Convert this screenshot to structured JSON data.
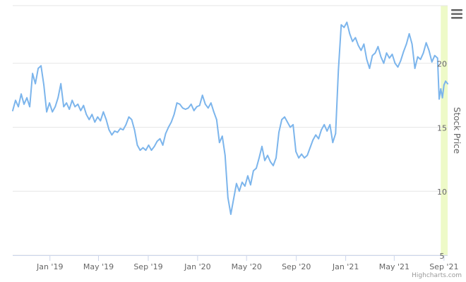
{
  "chart_data": {
    "type": "line",
    "title": "",
    "xlabel": "",
    "ylabel": "Stock Price",
    "yaxis_position": "right",
    "ylim": [
      5,
      24.5
    ],
    "xlim": [
      "2018-10-01",
      "2021-09-10"
    ],
    "y_ticks": [
      {
        "value": 5,
        "label": "5"
      },
      {
        "value": 10,
        "label": "10"
      },
      {
        "value": 15,
        "label": "15"
      },
      {
        "value": 20,
        "label": "20"
      }
    ],
    "x_ticks": [
      {
        "date": "2019-01-01",
        "label": "Jan '19"
      },
      {
        "date": "2019-05-01",
        "label": "May '19"
      },
      {
        "date": "2019-09-01",
        "label": "Sep '19"
      },
      {
        "date": "2020-01-01",
        "label": "Jan '20"
      },
      {
        "date": "2020-05-01",
        "label": "May '20"
      },
      {
        "date": "2020-09-01",
        "label": "Sep '20"
      },
      {
        "date": "2021-01-01",
        "label": "Jan '21"
      },
      {
        "date": "2021-05-01",
        "label": "May '21"
      },
      {
        "date": "2021-09-01",
        "label": "Sep '21"
      }
    ],
    "grid": true,
    "legend": "none",
    "highlight_band": {
      "from": "2021-08-24",
      "to": "2021-09-10",
      "color": "#eefac8"
    },
    "series": [
      {
        "color": "#7cb5ec",
        "points": [
          [
            "2018-10-01",
            16.3
          ],
          [
            "2018-10-08",
            17.1
          ],
          [
            "2018-10-15",
            16.6
          ],
          [
            "2018-10-22",
            17.6
          ],
          [
            "2018-10-29",
            16.8
          ],
          [
            "2018-11-05",
            17.3
          ],
          [
            "2018-11-12",
            16.6
          ],
          [
            "2018-11-19",
            19.2
          ],
          [
            "2018-11-26",
            18.4
          ],
          [
            "2018-12-03",
            19.6
          ],
          [
            "2018-12-10",
            19.8
          ],
          [
            "2018-12-17",
            18.3
          ],
          [
            "2018-12-24",
            16.2
          ],
          [
            "2018-12-31",
            16.9
          ],
          [
            "2019-01-07",
            16.2
          ],
          [
            "2019-01-14",
            16.6
          ],
          [
            "2019-01-21",
            17.3
          ],
          [
            "2019-01-28",
            18.4
          ],
          [
            "2019-02-04",
            16.6
          ],
          [
            "2019-02-11",
            16.9
          ],
          [
            "2019-02-18",
            16.4
          ],
          [
            "2019-02-25",
            17.1
          ],
          [
            "2019-03-04",
            16.6
          ],
          [
            "2019-03-11",
            16.8
          ],
          [
            "2019-03-18",
            16.3
          ],
          [
            "2019-03-25",
            16.7
          ],
          [
            "2019-04-01",
            16.0
          ],
          [
            "2019-04-08",
            15.6
          ],
          [
            "2019-04-15",
            16.0
          ],
          [
            "2019-04-22",
            15.4
          ],
          [
            "2019-04-29",
            15.8
          ],
          [
            "2019-05-06",
            15.5
          ],
          [
            "2019-05-13",
            16.2
          ],
          [
            "2019-05-20",
            15.6
          ],
          [
            "2019-05-27",
            14.8
          ],
          [
            "2019-06-03",
            14.4
          ],
          [
            "2019-06-10",
            14.7
          ],
          [
            "2019-06-17",
            14.6
          ],
          [
            "2019-06-24",
            14.9
          ],
          [
            "2019-07-01",
            14.8
          ],
          [
            "2019-07-08",
            15.2
          ],
          [
            "2019-07-15",
            15.8
          ],
          [
            "2019-07-22",
            15.6
          ],
          [
            "2019-07-29",
            14.8
          ],
          [
            "2019-08-05",
            13.6
          ],
          [
            "2019-08-12",
            13.2
          ],
          [
            "2019-08-19",
            13.4
          ],
          [
            "2019-08-26",
            13.2
          ],
          [
            "2019-09-02",
            13.6
          ],
          [
            "2019-09-09",
            13.2
          ],
          [
            "2019-09-16",
            13.5
          ],
          [
            "2019-09-23",
            13.9
          ],
          [
            "2019-09-30",
            14.1
          ],
          [
            "2019-10-07",
            13.6
          ],
          [
            "2019-10-14",
            14.5
          ],
          [
            "2019-10-21",
            15.0
          ],
          [
            "2019-10-28",
            15.4
          ],
          [
            "2019-11-04",
            16.0
          ],
          [
            "2019-11-11",
            16.9
          ],
          [
            "2019-11-18",
            16.8
          ],
          [
            "2019-11-25",
            16.5
          ],
          [
            "2019-12-02",
            16.4
          ],
          [
            "2019-12-09",
            16.5
          ],
          [
            "2019-12-16",
            16.8
          ],
          [
            "2019-12-23",
            16.3
          ],
          [
            "2019-12-30",
            16.6
          ],
          [
            "2020-01-06",
            16.7
          ],
          [
            "2020-01-13",
            17.5
          ],
          [
            "2020-01-20",
            16.8
          ],
          [
            "2020-01-27",
            16.5
          ],
          [
            "2020-02-03",
            16.9
          ],
          [
            "2020-02-10",
            16.2
          ],
          [
            "2020-02-17",
            15.6
          ],
          [
            "2020-02-24",
            13.8
          ],
          [
            "2020-03-02",
            14.3
          ],
          [
            "2020-03-09",
            12.8
          ],
          [
            "2020-03-16",
            9.5
          ],
          [
            "2020-03-23",
            8.2
          ],
          [
            "2020-03-30",
            9.4
          ],
          [
            "2020-04-06",
            10.6
          ],
          [
            "2020-04-13",
            10.0
          ],
          [
            "2020-04-20",
            10.7
          ],
          [
            "2020-04-27",
            10.4
          ],
          [
            "2020-05-04",
            11.2
          ],
          [
            "2020-05-11",
            10.5
          ],
          [
            "2020-05-18",
            11.6
          ],
          [
            "2020-05-25",
            11.8
          ],
          [
            "2020-06-01",
            12.6
          ],
          [
            "2020-06-08",
            13.5
          ],
          [
            "2020-06-15",
            12.4
          ],
          [
            "2020-06-22",
            12.8
          ],
          [
            "2020-06-29",
            12.3
          ],
          [
            "2020-07-06",
            12.0
          ],
          [
            "2020-07-13",
            12.6
          ],
          [
            "2020-07-20",
            14.6
          ],
          [
            "2020-07-27",
            15.6
          ],
          [
            "2020-08-03",
            15.8
          ],
          [
            "2020-08-10",
            15.4
          ],
          [
            "2020-08-17",
            15.0
          ],
          [
            "2020-08-24",
            15.2
          ],
          [
            "2020-08-31",
            13.1
          ],
          [
            "2020-09-07",
            12.6
          ],
          [
            "2020-09-14",
            12.9
          ],
          [
            "2020-09-21",
            12.6
          ],
          [
            "2020-09-28",
            12.8
          ],
          [
            "2020-10-05",
            13.4
          ],
          [
            "2020-10-12",
            14.0
          ],
          [
            "2020-10-19",
            14.4
          ],
          [
            "2020-10-26",
            14.1
          ],
          [
            "2020-11-02",
            14.8
          ],
          [
            "2020-11-09",
            15.2
          ],
          [
            "2020-11-16",
            14.7
          ],
          [
            "2020-11-23",
            15.2
          ],
          [
            "2020-11-30",
            13.8
          ],
          [
            "2020-12-07",
            14.5
          ],
          [
            "2020-12-14",
            19.5
          ],
          [
            "2020-12-21",
            23.0
          ],
          [
            "2020-12-28",
            22.8
          ],
          [
            "2021-01-04",
            23.2
          ],
          [
            "2021-01-11",
            22.3
          ],
          [
            "2021-01-18",
            21.7
          ],
          [
            "2021-01-25",
            22.0
          ],
          [
            "2021-02-01",
            21.4
          ],
          [
            "2021-02-08",
            21.0
          ],
          [
            "2021-02-15",
            21.5
          ],
          [
            "2021-02-22",
            20.3
          ],
          [
            "2021-03-01",
            19.6
          ],
          [
            "2021-03-08",
            20.6
          ],
          [
            "2021-03-15",
            20.8
          ],
          [
            "2021-03-22",
            21.3
          ],
          [
            "2021-03-29",
            20.5
          ],
          [
            "2021-04-05",
            20.0
          ],
          [
            "2021-04-12",
            20.8
          ],
          [
            "2021-04-19",
            20.4
          ],
          [
            "2021-04-26",
            20.7
          ],
          [
            "2021-05-03",
            20.0
          ],
          [
            "2021-05-10",
            19.7
          ],
          [
            "2021-05-17",
            20.2
          ],
          [
            "2021-05-24",
            20.9
          ],
          [
            "2021-05-31",
            21.5
          ],
          [
            "2021-06-07",
            22.3
          ],
          [
            "2021-06-14",
            21.5
          ],
          [
            "2021-06-21",
            19.6
          ],
          [
            "2021-06-28",
            20.5
          ],
          [
            "2021-07-05",
            20.3
          ],
          [
            "2021-07-12",
            20.8
          ],
          [
            "2021-07-19",
            21.6
          ],
          [
            "2021-07-26",
            21.0
          ],
          [
            "2021-08-02",
            20.1
          ],
          [
            "2021-08-09",
            20.6
          ],
          [
            "2021-08-16",
            20.4
          ],
          [
            "2021-08-20",
            17.2
          ],
          [
            "2021-08-24",
            18.0
          ],
          [
            "2021-08-28",
            17.3
          ],
          [
            "2021-09-01",
            18.3
          ],
          [
            "2021-09-05",
            18.6
          ],
          [
            "2021-09-10",
            18.4
          ]
        ]
      }
    ]
  },
  "menu": {
    "icon": "hamburger-menu-icon"
  },
  "credits": {
    "text": "Highcharts.com"
  }
}
